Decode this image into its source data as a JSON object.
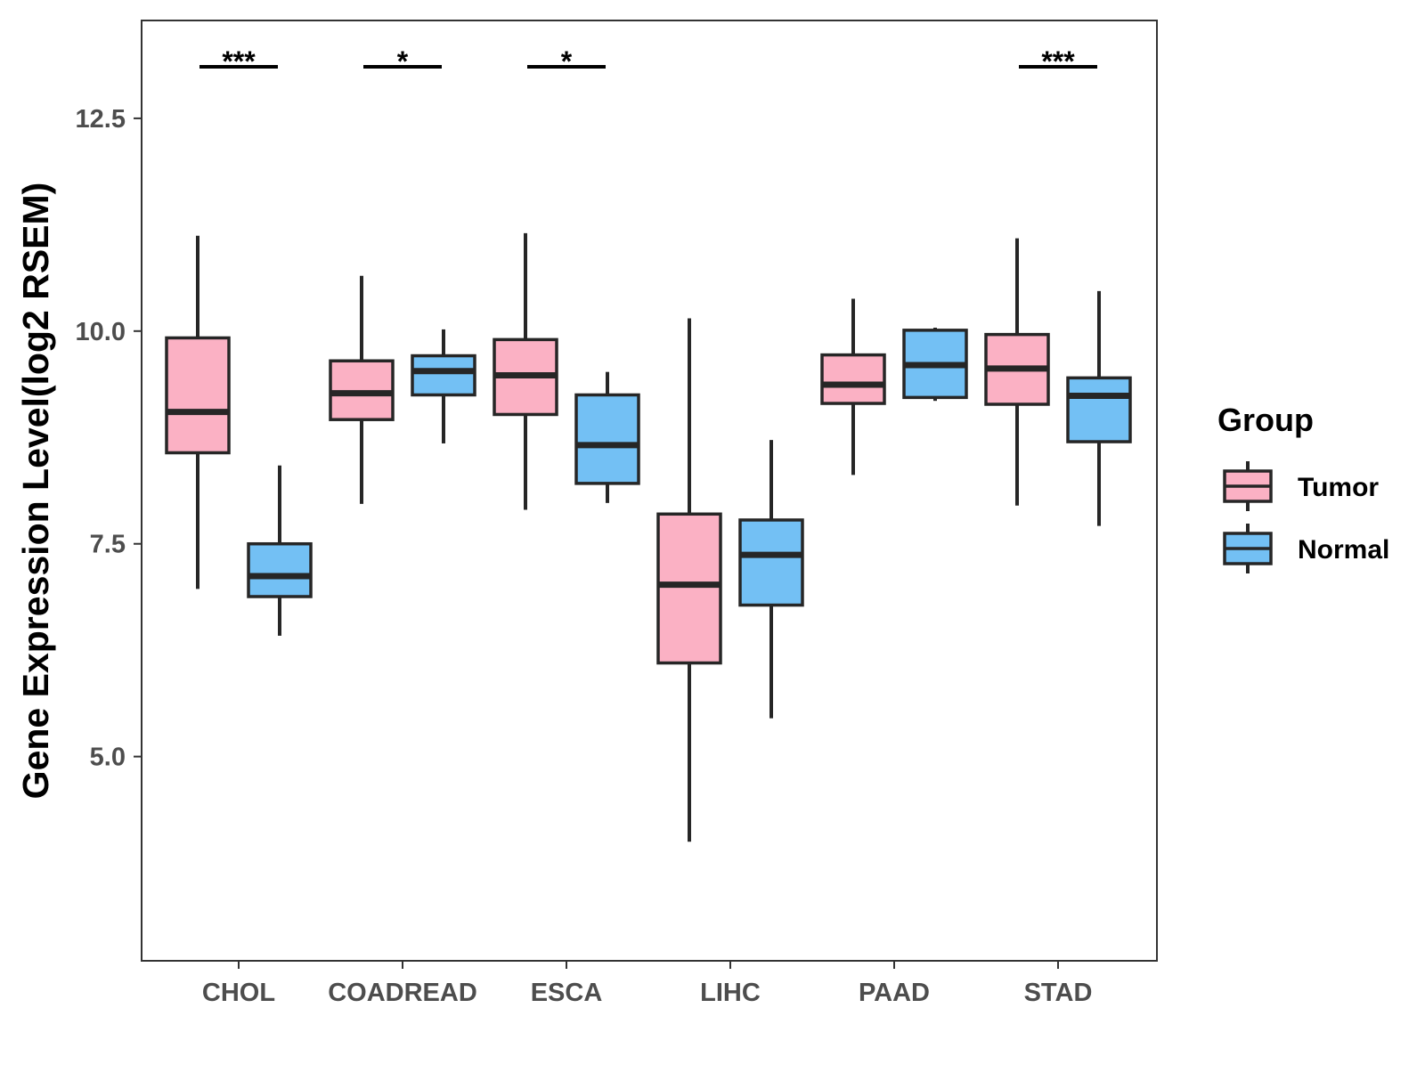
{
  "chart_data": {
    "type": "boxplot",
    "title": "",
    "xlabel": "",
    "ylabel": "Gene Expression Level(log2 RSEM)",
    "ylim": [
      2.6,
      13.65
    ],
    "y_ticks": [
      5.0,
      7.5,
      10.0,
      12.5
    ],
    "y_tick_labels": [
      "5.0",
      "7.5",
      "10.0",
      "12.5"
    ],
    "grid": false,
    "categories": [
      "CHOL",
      "COADREAD",
      "ESCA",
      "LIHC",
      "PAAD",
      "STAD"
    ],
    "series": [
      {
        "name": "Tumor",
        "color": "#FBB1C4",
        "boxes": [
          {
            "whisker_low": 6.97,
            "q1": 8.57,
            "median": 9.05,
            "q3": 9.92,
            "whisker_high": 11.12
          },
          {
            "whisker_low": 7.97,
            "q1": 8.96,
            "median": 9.27,
            "q3": 9.65,
            "whisker_high": 10.65
          },
          {
            "whisker_low": 7.9,
            "q1": 9.02,
            "median": 9.48,
            "q3": 9.9,
            "whisker_high": 11.15
          },
          {
            "whisker_low": 4.0,
            "q1": 6.1,
            "median": 7.02,
            "q3": 7.85,
            "whisker_high": 10.15
          },
          {
            "whisker_low": 8.31,
            "q1": 9.15,
            "median": 9.37,
            "q3": 9.72,
            "whisker_high": 10.38
          },
          {
            "whisker_low": 7.95,
            "q1": 9.14,
            "median": 9.56,
            "q3": 9.96,
            "whisker_high": 11.09
          }
        ]
      },
      {
        "name": "Normal",
        "color": "#73C0F4",
        "boxes": [
          {
            "whisker_low": 6.42,
            "q1": 6.88,
            "median": 7.12,
            "q3": 7.5,
            "whisker_high": 8.42
          },
          {
            "whisker_low": 8.68,
            "q1": 9.25,
            "median": 9.53,
            "q3": 9.71,
            "whisker_high": 10.02
          },
          {
            "whisker_low": 7.98,
            "q1": 8.21,
            "median": 8.66,
            "q3": 9.25,
            "whisker_high": 9.52
          },
          {
            "whisker_low": 5.45,
            "q1": 6.78,
            "median": 7.37,
            "q3": 7.78,
            "whisker_high": 8.72
          },
          {
            "whisker_low": 9.18,
            "q1": 9.22,
            "median": 9.6,
            "q3": 10.01,
            "whisker_high": 10.04
          },
          {
            "whisker_low": 7.71,
            "q1": 8.7,
            "median": 9.24,
            "q3": 9.45,
            "whisker_high": 10.47
          }
        ]
      }
    ],
    "significance": [
      {
        "category": "CHOL",
        "label": "***"
      },
      {
        "category": "COADREAD",
        "label": "*"
      },
      {
        "category": "ESCA",
        "label": "*"
      },
      {
        "category": "LIHC",
        "label": ""
      },
      {
        "category": "PAAD",
        "label": ""
      },
      {
        "category": "STAD",
        "label": "***"
      }
    ],
    "legend": {
      "title": "Group",
      "position": "right",
      "items": [
        "Tumor",
        "Normal"
      ]
    }
  }
}
